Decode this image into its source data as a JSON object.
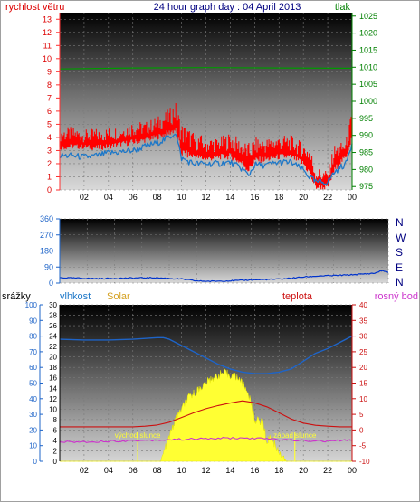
{
  "chart_data": [
    {
      "type": "line",
      "title": "24 hour graph day : 04 April 2013",
      "left_axis_label": "rychlost větru",
      "right_axis_label": "tlak",
      "x_ticks": [
        "02",
        "04",
        "06",
        "08",
        "10",
        "12",
        "14",
        "16",
        "18",
        "20",
        "22",
        "00"
      ],
      "left_ticks": [
        "0",
        "1",
        "2",
        "3",
        "4",
        "5",
        "6",
        "7",
        "8",
        "9",
        "10",
        "11",
        "12",
        "13"
      ],
      "right_ticks": [
        "975",
        "980",
        "985",
        "990",
        "995",
        "1000",
        "1005",
        "1010",
        "1015",
        "1020",
        "1025"
      ],
      "ylim_left": [
        0,
        13.5
      ],
      "ylim_right": [
        974,
        1026
      ],
      "series": [
        {
          "name": "rychlost větru",
          "axis": "left",
          "color": "#ff0000",
          "x": [
            0,
            1,
            2,
            3,
            4,
            5,
            6,
            7,
            8,
            9,
            9.5,
            10,
            11,
            12,
            13,
            14,
            15,
            15.5,
            16,
            17,
            18,
            19,
            20,
            20.5,
            21,
            22,
            22.5,
            23,
            23.5,
            24
          ],
          "max": [
            4.8,
            4.8,
            4.6,
            4.7,
            4.8,
            4.9,
            5.3,
            5.2,
            5.6,
            6.2,
            6.8,
            5.2,
            4.4,
            4.1,
            4.0,
            4.4,
            3.8,
            3.6,
            4.0,
            4.0,
            4.2,
            4.2,
            3.6,
            3.6,
            1.8,
            1.5,
            3.5,
            3.6,
            3.8,
            6.2
          ],
          "min": [
            3.0,
            3.1,
            3.1,
            3.0,
            3.1,
            3.3,
            3.4,
            3.6,
            3.8,
            4.1,
            4.3,
            2.5,
            2.3,
            2.1,
            2.3,
            2.3,
            1.8,
            1.2,
            2.0,
            2.1,
            2.3,
            2.3,
            1.8,
            1.0,
            0.0,
            0.0,
            1.1,
            1.9,
            2.3,
            3.8
          ]
        },
        {
          "name": "wind-avg",
          "axis": "left",
          "color": "#1e78c8",
          "x": [
            0,
            1,
            2,
            3,
            4,
            5,
            6,
            7,
            8,
            9,
            9.5,
            10,
            11,
            12,
            13,
            14,
            15,
            15.5,
            16,
            17,
            18,
            19,
            20,
            20.5,
            21,
            22,
            22.5,
            23,
            23.5,
            24
          ],
          "values": [
            2.6,
            2.6,
            2.5,
            2.6,
            2.8,
            2.9,
            3.0,
            3.3,
            3.6,
            4.0,
            4.4,
            2.4,
            2.0,
            2.0,
            2.0,
            2.1,
            1.6,
            1.1,
            1.9,
            1.9,
            2.1,
            2.1,
            1.5,
            1.0,
            0.6,
            0.6,
            1.3,
            1.7,
            2.0,
            3.6
          ]
        },
        {
          "name": "tlak",
          "axis": "right",
          "color": "#009a00",
          "x": [
            0,
            6,
            12,
            18,
            24
          ],
          "values": [
            1009.5,
            1009.8,
            1009.9,
            1009.8,
            1009.7
          ]
        }
      ]
    },
    {
      "type": "line",
      "x_ticks": [
        "02",
        "04",
        "06",
        "08",
        "10",
        "12",
        "14",
        "16",
        "18",
        "20",
        "22",
        "00"
      ],
      "left_ticks": [
        "0",
        "90",
        "180",
        "270",
        "360"
      ],
      "right_labels": [
        "N",
        "W",
        "S",
        "E",
        "N"
      ],
      "ylim": [
        0,
        360
      ],
      "series": [
        {
          "name": "wind-direction",
          "color": "#0033cc",
          "x": [
            0,
            1,
            3,
            5,
            7,
            8,
            9,
            10,
            11,
            12,
            13,
            14,
            15,
            16,
            17,
            18,
            19,
            20,
            21,
            22,
            23,
            23.5,
            24
          ],
          "values": [
            30,
            28,
            25,
            28,
            30,
            26,
            22,
            12,
            10,
            12,
            14,
            18,
            20,
            22,
            28,
            35,
            40,
            42,
            45,
            50,
            55,
            70,
            60
          ]
        }
      ]
    },
    {
      "type": "line",
      "x_ticks": [
        "02",
        "04",
        "06",
        "08",
        "10",
        "12",
        "14",
        "16",
        "18",
        "20",
        "22",
        "00"
      ],
      "axis1_label": "srážky",
      "axis1_ticks": [
        "0",
        "10",
        "20",
        "30",
        "40",
        "50",
        "60",
        "70",
        "80",
        "90",
        "100"
      ],
      "axis2_ticks": [
        "0",
        "2",
        "4",
        "6",
        "8",
        "10",
        "12",
        "14",
        "16",
        "18",
        "20",
        "22",
        "24",
        "26",
        "28",
        "30"
      ],
      "right_ticks": [
        "-10",
        "-5",
        "0",
        "5",
        "10",
        "15",
        "20",
        "25",
        "30",
        "35",
        "40"
      ],
      "ylim_axis1": [
        0,
        100
      ],
      "ylim_axis2": [
        0,
        30
      ],
      "ylim_right": [
        -10,
        40
      ],
      "legend": {
        "vlhkost": "vlhkost",
        "solar": "Solar",
        "teplota": "teplota",
        "rosny_bod": "rosný bod"
      },
      "annotations": [
        {
          "text": "východ slunce",
          "x": 6.4
        },
        {
          "text": "západ slunce",
          "x": 19.3
        }
      ],
      "series": [
        {
          "name": "vlhkost",
          "axis": "axis1",
          "color": "#1e64c8",
          "x": [
            0,
            2,
            4,
            6,
            8,
            8.5,
            9,
            10,
            11,
            12,
            13,
            14,
            15,
            16,
            17,
            18,
            19,
            20,
            21,
            22,
            23,
            24
          ],
          "values": [
            78,
            77.5,
            77.5,
            78,
            79,
            79,
            78,
            74,
            70,
            66,
            62,
            59,
            57,
            56,
            56,
            57,
            59,
            64,
            69,
            72,
            76,
            80
          ]
        },
        {
          "name": "teplota",
          "axis": "right",
          "color": "#cc1010",
          "x": [
            0,
            2,
            4,
            6,
            7,
            8,
            9,
            10,
            11,
            12,
            13,
            14,
            15,
            16,
            17,
            18,
            19,
            20,
            21,
            22,
            23,
            24
          ],
          "values": [
            1,
            1,
            1,
            1,
            1.2,
            1.6,
            2.5,
            4,
            5.5,
            6.8,
            7.8,
            8.6,
            9.3,
            8.7,
            7.4,
            5.5,
            3.5,
            2.2,
            1.5,
            1.2,
            1,
            1
          ]
        },
        {
          "name": "rosný bod",
          "axis": "right",
          "color": "#cc33cc",
          "x": [
            0,
            2,
            4,
            6,
            8,
            10,
            12,
            14,
            16,
            18,
            20,
            22,
            24
          ],
          "values": [
            -3.8,
            -3.8,
            -3.6,
            -3.4,
            -3.2,
            -3.0,
            -2.8,
            -2.6,
            -2.7,
            -3.0,
            -3.4,
            -3.6,
            -3.2
          ]
        },
        {
          "name": "Solar",
          "axis": "axis2",
          "color": "#ffff33",
          "x": [
            0,
            8.3,
            8.8,
            9.5,
            10.5,
            11.5,
            12.5,
            13.5,
            14,
            14.7,
            15.5,
            16,
            16.7,
            17,
            17.3,
            17.8,
            18.3,
            18.6,
            24
          ],
          "values": [
            0,
            0,
            3.5,
            8,
            12,
            14,
            16,
            17,
            16.5,
            16,
            13,
            8,
            7.5,
            3.5,
            5,
            2.5,
            1,
            0,
            0
          ]
        }
      ]
    }
  ]
}
